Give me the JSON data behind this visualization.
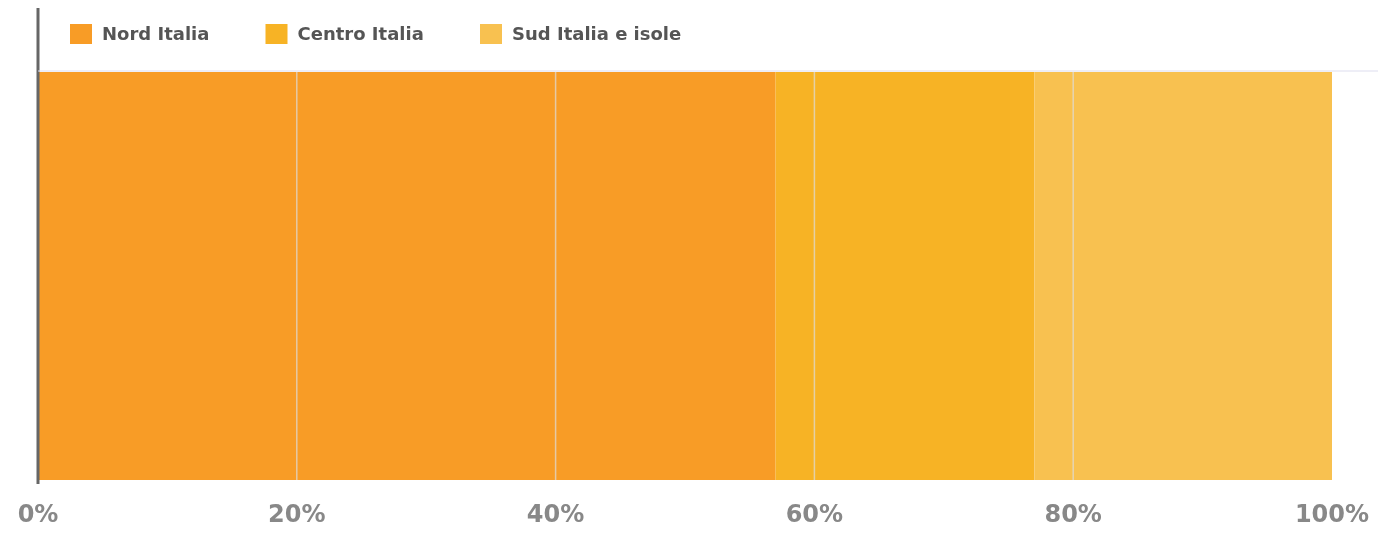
{
  "chart_data": {
    "type": "bar",
    "orientation": "horizontal",
    "stacked": true,
    "categories": [
      null
    ],
    "series": [
      {
        "name": "Nord Italia",
        "color": "#f89c26",
        "values": [
          57
        ]
      },
      {
        "name": "Centro Italia",
        "color": "#f7b325",
        "values": [
          20
        ]
      },
      {
        "name": "Sud Italia e isole",
        "color": "#f8c150",
        "values": [
          23
        ]
      }
    ],
    "xlim": [
      0,
      100
    ],
    "xticks": [
      {
        "value": 0,
        "label": "0%"
      },
      {
        "value": 20,
        "label": "20%"
      },
      {
        "value": 40,
        "label": "40%"
      },
      {
        "value": 60,
        "label": "60%"
      },
      {
        "value": 80,
        "label": "80%"
      },
      {
        "value": 100,
        "label": "100%"
      }
    ],
    "grid": "x",
    "legend": "top left"
  }
}
